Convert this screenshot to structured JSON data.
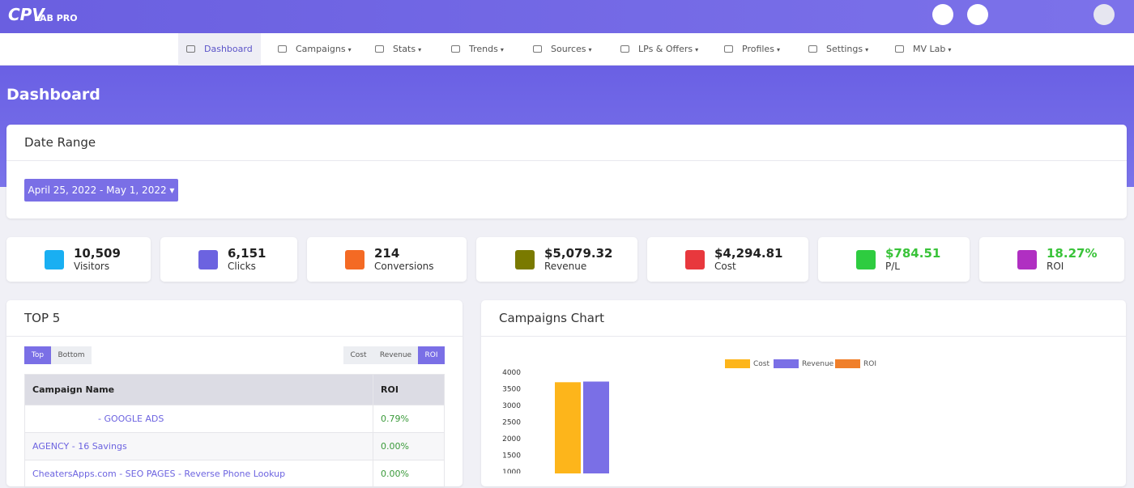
{
  "header": {
    "logo_main": "CPV",
    "logo_sub": "LAB PRO"
  },
  "nav": [
    "Dashboard",
    "Campaigns",
    "Stats",
    "Trends",
    "Sources",
    "LPs & Offers",
    "Profiles",
    "Settings",
    "MV Lab"
  ],
  "page_title": "Dashboard",
  "date_range": {
    "title": "Date Range",
    "button": "April 25, 2022 - May 1, 2022"
  },
  "stats": [
    {
      "value": "10,509",
      "label": "Visitors"
    },
    {
      "value": "6,151",
      "label": "Clicks"
    },
    {
      "value": "214",
      "label": "Conversions"
    },
    {
      "value": "$5,079.32",
      "label": "Revenue"
    },
    {
      "value": "$4,294.81",
      "label": "Cost"
    },
    {
      "value": "$784.51",
      "label": "P/L"
    },
    {
      "value": "18.27%",
      "label": "ROI"
    }
  ],
  "top5": {
    "title": "TOP 5",
    "toggle": [
      "Top",
      "Bottom"
    ],
    "metrics": [
      "Cost",
      "Revenue",
      "ROI"
    ],
    "table": {
      "headers": [
        "Campaign Name",
        "ROI"
      ],
      "rows": [
        [
          "- GOOGLE ADS",
          "0.79%"
        ],
        [
          "AGENCY - 16 Savings",
          "0.00%"
        ],
        [
          "CheatersApps.com - SEO PAGES - Reverse Phone Lookup",
          "0.00%"
        ]
      ]
    }
  },
  "campaigns_chart": {
    "title": "Campaigns Chart"
  },
  "chart_data": {
    "type": "bar",
    "categories": [
      null
    ],
    "series": [
      {
        "name": "Cost",
        "color": "#fdb51b",
        "values": [
          3700
        ]
      },
      {
        "name": "Revenue",
        "color": "#7a6fe6",
        "values": [
          3720
        ]
      },
      {
        "name": "ROI",
        "color": "#f07f2a",
        "values": [
          null
        ]
      }
    ],
    "ylim": [
      0,
      4000
    ],
    "yticks": [
      1000,
      1500,
      2000,
      2500,
      3000,
      3500,
      4000
    ],
    "grid": false,
    "legend": "top"
  }
}
